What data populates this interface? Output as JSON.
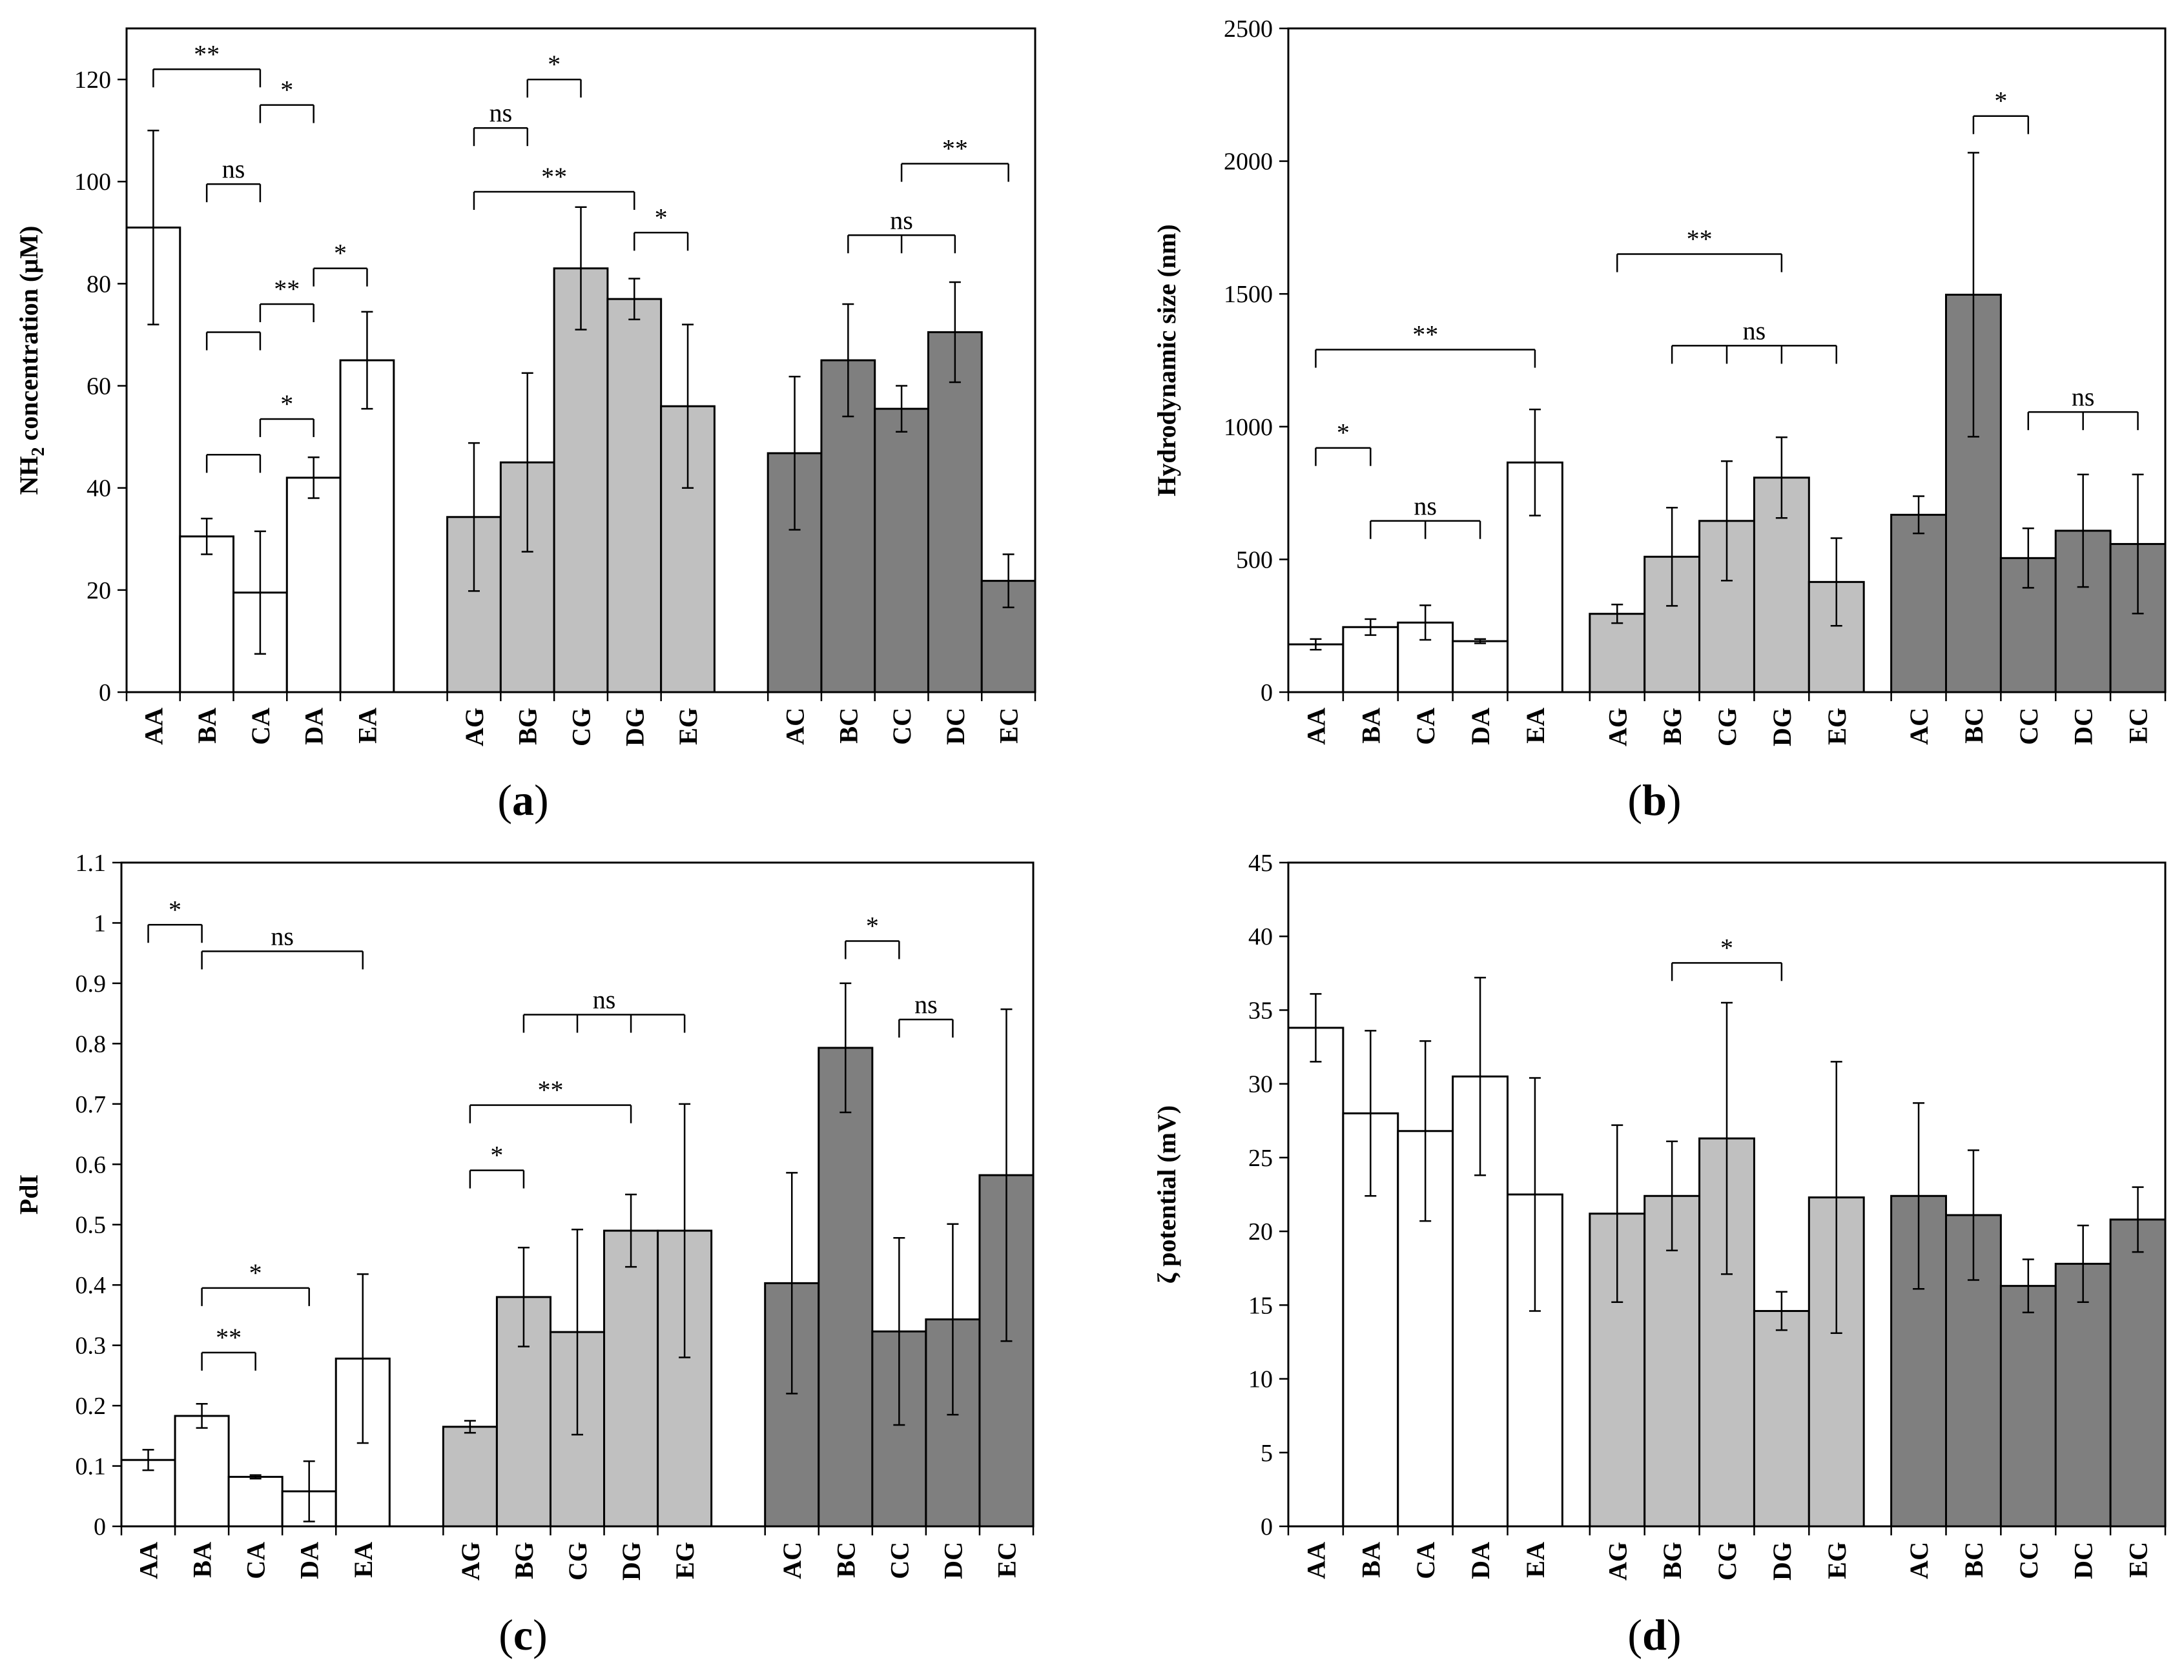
{
  "chart_data": [
    {
      "type": "bar",
      "panel_label": "(a)",
      "ylabel_main": "NH",
      "ylabel_sub": "2",
      "ylabel_rest": " concentration (µM)",
      "ylim": [
        0,
        130
      ],
      "yticks": [
        0,
        20,
        40,
        60,
        80,
        100,
        120
      ],
      "categories": [
        "AA",
        "BA",
        "CA",
        "DA",
        "EA",
        "AG",
        "BG",
        "CG",
        "DG",
        "EG",
        "AC",
        "BC",
        "CC",
        "DC",
        "EC"
      ],
      "values": [
        91,
        30.5,
        19.5,
        42,
        65,
        34.3,
        45,
        83,
        77,
        56,
        46.8,
        65,
        55.5,
        70.5,
        21.8
      ],
      "errors": [
        19,
        3.5,
        12,
        4,
        9.5,
        14.5,
        17.5,
        12,
        4,
        16,
        15,
        11,
        4.5,
        9.8,
        5.2
      ],
      "colors": [
        "#ffffff",
        "#ffffff",
        "#ffffff",
        "#ffffff",
        "#ffffff",
        "#c0c0c0",
        "#c0c0c0",
        "#c0c0c0",
        "#c0c0c0",
        "#c0c0c0",
        "#7f7f7f",
        "#7f7f7f",
        "#7f7f7f",
        "#7f7f7f",
        "#7f7f7f"
      ],
      "annotations": [
        {
          "from": 0,
          "to": 2,
          "y": 122,
          "label": "**"
        },
        {
          "from": 2,
          "to": 3,
          "y": 115,
          "label": "*"
        },
        {
          "from": 1,
          "to": 2,
          "y": 99.5,
          "label": "ns"
        },
        {
          "from": 3,
          "to": 4,
          "y": 83,
          "label": "*"
        },
        {
          "from": 2,
          "to": 3,
          "y": 76,
          "label": "**"
        },
        {
          "from": 1,
          "to": 2,
          "y": 70.5,
          "label": ""
        },
        {
          "from": 2,
          "to": 3,
          "y": 53.5,
          "label": "*"
        },
        {
          "from": 1,
          "to": 2,
          "y": 46.5,
          "label": ""
        },
        {
          "from": 6,
          "to": 7,
          "y": 120,
          "label": "*"
        },
        {
          "from": 5,
          "to": 6,
          "y": 110.5,
          "label": "ns"
        },
        {
          "from": 5,
          "to": 8,
          "y": 98,
          "label": "**"
        },
        {
          "from": 8,
          "to": 9,
          "y": 90,
          "label": "*"
        },
        {
          "from": 11,
          "to": 13,
          "y": 89.5,
          "ticks": [
            11,
            12,
            13
          ],
          "label": "ns"
        },
        {
          "from": 12,
          "to": 14,
          "y": 103.5,
          "label": "**"
        }
      ]
    },
    {
      "type": "bar",
      "panel_label": "(b)",
      "ylabel_main": "Hydrodynamic size (nm)",
      "ylim": [
        0,
        2500
      ],
      "yticks": [
        0,
        500,
        1000,
        1500,
        2000,
        2500
      ],
      "categories": [
        "AA",
        "BA",
        "CA",
        "DA",
        "EA",
        "AG",
        "BG",
        "CG",
        "DG",
        "EG",
        "AC",
        "BC",
        "CC",
        "DC",
        "EC"
      ],
      "values": [
        180,
        245,
        262,
        192,
        865,
        295,
        510,
        645,
        808,
        415,
        668,
        1497,
        505,
        608,
        558
      ],
      "errors": [
        20,
        30,
        65,
        8,
        200,
        35,
        185,
        225,
        152,
        165,
        70,
        535,
        112,
        212,
        262
      ],
      "colors": [
        "#ffffff",
        "#ffffff",
        "#ffffff",
        "#ffffff",
        "#ffffff",
        "#c0c0c0",
        "#c0c0c0",
        "#c0c0c0",
        "#c0c0c0",
        "#c0c0c0",
        "#7f7f7f",
        "#7f7f7f",
        "#7f7f7f",
        "#7f7f7f",
        "#7f7f7f"
      ],
      "annotations": [
        {
          "from": 0,
          "to": 4,
          "y": 1290,
          "label": "**"
        },
        {
          "from": 0,
          "to": 1,
          "y": 920,
          "label": "*"
        },
        {
          "from": 1,
          "to": 3,
          "y": 645,
          "ticks": [
            1,
            2,
            3
          ],
          "label": "ns"
        },
        {
          "from": 5,
          "to": 8,
          "y": 1650,
          "label": "**"
        },
        {
          "from": 6,
          "to": 9,
          "y": 1305,
          "ticks": [
            6,
            7,
            8,
            9
          ],
          "label": "ns"
        },
        {
          "from": 11,
          "to": 12,
          "y": 2170,
          "label": "*"
        },
        {
          "from": 12,
          "to": 14,
          "y": 1055,
          "ticks": [
            12,
            13,
            14
          ],
          "label": "ns"
        }
      ]
    },
    {
      "type": "bar",
      "panel_label": "(c)",
      "ylabel_main": "PdI",
      "ylim": [
        0,
        1.1
      ],
      "yticks": [
        0,
        0.1,
        0.2,
        0.3,
        0.4,
        0.5,
        0.6,
        0.7,
        0.8,
        0.9,
        1,
        1.1
      ],
      "categories": [
        "AA",
        "BA",
        "CA",
        "DA",
        "EA",
        "AG",
        "BG",
        "CG",
        "DG",
        "EG",
        "AC",
        "BC",
        "CC",
        "DC",
        "EC"
      ],
      "values": [
        0.11,
        0.183,
        0.082,
        0.058,
        0.278,
        0.165,
        0.38,
        0.322,
        0.49,
        0.49,
        0.403,
        0.793,
        0.323,
        0.343,
        0.582
      ],
      "errors": [
        0.017,
        0.02,
        0.003,
        0.05,
        0.14,
        0.01,
        0.082,
        0.17,
        0.06,
        0.21,
        0.183,
        0.107,
        0.155,
        0.158,
        0.275
      ],
      "colors": [
        "#ffffff",
        "#ffffff",
        "#ffffff",
        "#ffffff",
        "#ffffff",
        "#c0c0c0",
        "#c0c0c0",
        "#c0c0c0",
        "#c0c0c0",
        "#c0c0c0",
        "#7f7f7f",
        "#7f7f7f",
        "#7f7f7f",
        "#7f7f7f",
        "#7f7f7f"
      ],
      "annotations": [
        {
          "from": 0,
          "to": 1,
          "y": 0.997,
          "label": "*"
        },
        {
          "from": 1,
          "to": 4,
          "y": 0.953,
          "label": "ns"
        },
        {
          "from": 1,
          "to": 3,
          "y": 0.395,
          "label": "*"
        },
        {
          "from": 1,
          "to": 2,
          "y": 0.288,
          "label": "**"
        },
        {
          "from": 6,
          "to": 9,
          "y": 0.848,
          "ticks": [
            6,
            7,
            8,
            9
          ],
          "label": "ns"
        },
        {
          "from": 5,
          "to": 8,
          "y": 0.698,
          "label": "**"
        },
        {
          "from": 5,
          "to": 6,
          "y": 0.59,
          "label": "*"
        },
        {
          "from": 11,
          "to": 12,
          "y": 0.97,
          "label": "*"
        },
        {
          "from": 12,
          "to": 13,
          "y": 0.84,
          "label": "ns"
        }
      ]
    },
    {
      "type": "bar",
      "panel_label": "(d)",
      "ylabel_main": "ζ potential (mV)",
      "ylim": [
        0,
        45
      ],
      "yticks": [
        0,
        5,
        10,
        15,
        20,
        25,
        30,
        35,
        40,
        45
      ],
      "categories": [
        "AA",
        "BA",
        "CA",
        "DA",
        "EA",
        "AG",
        "BG",
        "CG",
        "DG",
        "EG",
        "AC",
        "BC",
        "CC",
        "DC",
        "EC"
      ],
      "values": [
        33.8,
        28,
        26.8,
        30.5,
        22.5,
        21.2,
        22.4,
        26.3,
        14.6,
        22.3,
        22.4,
        21.1,
        16.3,
        17.8,
        20.8
      ],
      "errors": [
        2.3,
        5.6,
        6.1,
        6.7,
        7.9,
        6,
        3.7,
        9.2,
        1.3,
        9.2,
        6.3,
        4.4,
        1.8,
        2.6,
        2.2
      ],
      "colors": [
        "#ffffff",
        "#ffffff",
        "#ffffff",
        "#ffffff",
        "#ffffff",
        "#c0c0c0",
        "#c0c0c0",
        "#c0c0c0",
        "#c0c0c0",
        "#c0c0c0",
        "#7f7f7f",
        "#7f7f7f",
        "#7f7f7f",
        "#7f7f7f",
        "#7f7f7f"
      ],
      "annotations": [
        {
          "from": 6,
          "to": 8,
          "y": 38.2,
          "label": "*"
        }
      ]
    }
  ]
}
